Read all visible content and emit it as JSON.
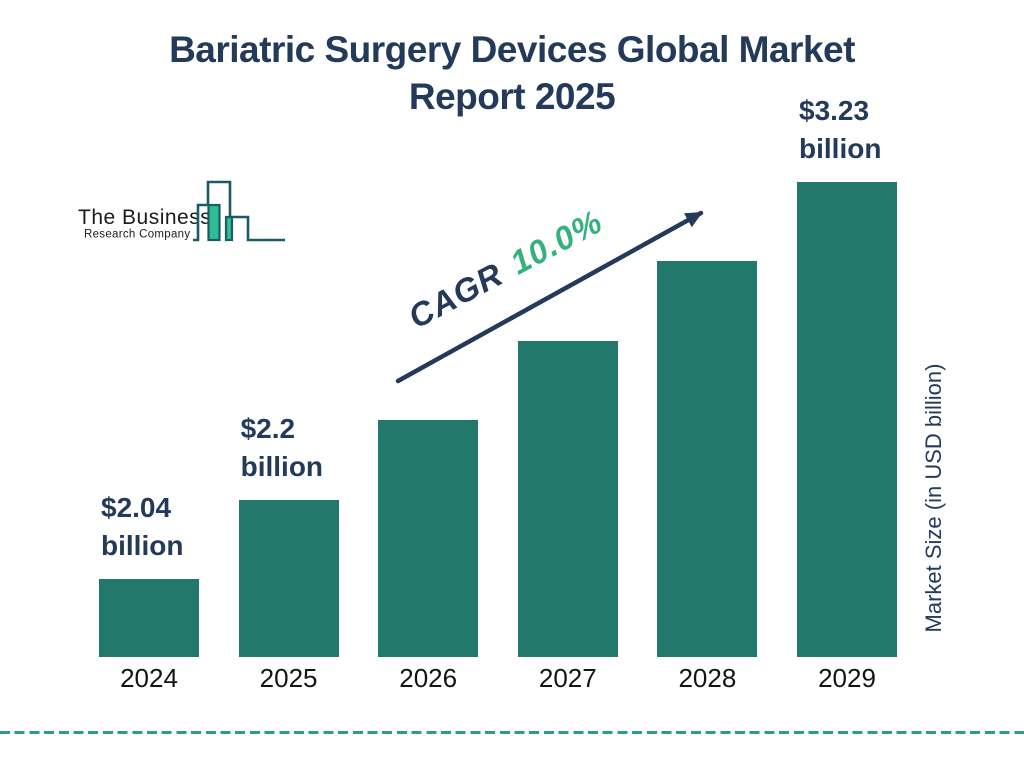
{
  "title": {
    "text": "Bariatric Surgery Devices Global Market Report 2025",
    "lines": [
      "Bariatric Surgery Devices Global Market",
      "Report 2025"
    ]
  },
  "logo": {
    "name_line1": "The Business",
    "name_line2": "Research Company"
  },
  "cagr": {
    "label": "CAGR",
    "value": "10.0%"
  },
  "y_axis_label": "Market Size (in USD billion)",
  "chart_data": {
    "type": "bar",
    "title": "Bariatric Surgery Devices Global Market Report 2025",
    "categories": [
      "2024",
      "2025",
      "2026",
      "2027",
      "2028",
      "2029"
    ],
    "values": [
      2.04,
      2.2,
      2.42,
      2.66,
      2.93,
      3.23
    ],
    "bar_labels": [
      [
        "$2.04",
        "billion"
      ],
      [
        "$2.2",
        "billion"
      ],
      null,
      null,
      null,
      [
        "$3.23",
        "billion"
      ]
    ],
    "xlabel": "",
    "ylabel": "Market Size (in USD billion)",
    "legend": false,
    "grid": false,
    "annotation": "CAGR 10.0%"
  },
  "colors": {
    "navy": "#243A5A",
    "bar_fill": "#22796B",
    "cagr_green": "#35B17D",
    "divider_teal": "#2A9D8F",
    "logo_outline": "#1D5A68",
    "logo_fill": "#2FBE92",
    "year_text": "#141414"
  }
}
